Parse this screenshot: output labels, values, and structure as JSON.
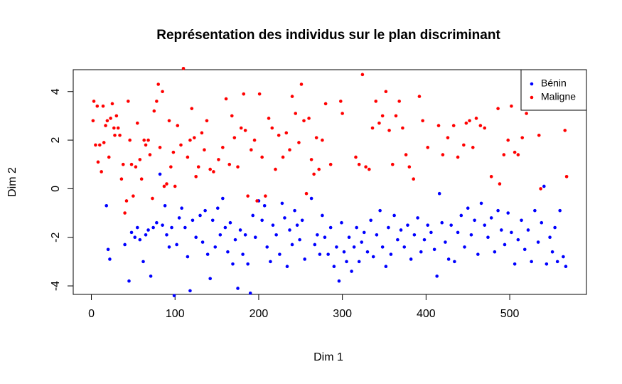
{
  "chart_data": {
    "type": "scatter",
    "title": "Représentation des individus sur le plan discriminant",
    "xlabel": "Dim 1",
    "ylabel": "Dim 2",
    "xlim": [
      -21.7,
      591.7
    ],
    "ylim": [
      -4.35,
      4.9
    ],
    "xticks": [
      0,
      100,
      200,
      300,
      400,
      500
    ],
    "yticks": [
      -4,
      -2,
      0,
      2,
      4
    ],
    "legend": "topright",
    "series": [
      {
        "name": "Bénin",
        "color": "#0000ff",
        "x": [
          18,
          20,
          22,
          40,
          45,
          48,
          52,
          55,
          58,
          62,
          65,
          68,
          71,
          74,
          78,
          82,
          85,
          88,
          90,
          93,
          96,
          99,
          102,
          105,
          108,
          112,
          115,
          118,
          121,
          125,
          130,
          133,
          136,
          139,
          142,
          145,
          148,
          151,
          154,
          157,
          160,
          163,
          166,
          169,
          172,
          175,
          178,
          181,
          184,
          187,
          190,
          193,
          196,
          200,
          204,
          207,
          210,
          214,
          217,
          221,
          225,
          228,
          231,
          234,
          237,
          240,
          243,
          246,
          249,
          252,
          255,
          263,
          267,
          270,
          273,
          276,
          279,
          283,
          286,
          290,
          293,
          296,
          299,
          302,
          305,
          308,
          311,
          314,
          317,
          320,
          323,
          326,
          330,
          334,
          337,
          341,
          345,
          348,
          352,
          355,
          358,
          362,
          366,
          370,
          374,
          378,
          382,
          386,
          390,
          394,
          398,
          402,
          406,
          410,
          413,
          416,
          419,
          423,
          427,
          430,
          434,
          438,
          442,
          446,
          450,
          454,
          458,
          462,
          466,
          470,
          474,
          478,
          482,
          486,
          490,
          494,
          498,
          502,
          506,
          510,
          514,
          518,
          522,
          526,
          530,
          534,
          538,
          541,
          544,
          548,
          551,
          554,
          557,
          560,
          564,
          567
        ],
        "values": [
          -0.7,
          -2.5,
          -2.9,
          -2.3,
          -3.8,
          -1.8,
          -2.0,
          -1.6,
          -2.1,
          -3.0,
          -1.9,
          -1.7,
          -3.6,
          -1.6,
          -1.4,
          0.6,
          -1.5,
          -0.7,
          -1.9,
          -2.4,
          -1.6,
          -4.4,
          -2.3,
          -1.2,
          -0.8,
          -1.6,
          -2.8,
          -4.2,
          -1.3,
          -2.0,
          -1.1,
          -2.2,
          -0.9,
          -2.7,
          -3.7,
          -1.3,
          -2.4,
          -0.8,
          -1.9,
          -0.4,
          -1.6,
          -2.6,
          -1.4,
          -3.1,
          -2.1,
          -4.1,
          -1.7,
          -2.7,
          -1.9,
          -3.1,
          -4.3,
          -1.1,
          -2.0,
          -0.5,
          -1.3,
          -0.7,
          -2.4,
          -3.0,
          -1.5,
          -1.9,
          -2.7,
          -0.6,
          -1.2,
          -3.2,
          -1.7,
          -2.3,
          -0.9,
          -1.5,
          -2.1,
          -1.3,
          -2.9,
          -0.4,
          -2.3,
          -1.9,
          -2.7,
          -1.1,
          -2.0,
          -2.7,
          -1.6,
          -3.2,
          -2.4,
          -3.8,
          -1.4,
          -2.6,
          -3.0,
          -2.0,
          -3.4,
          -2.4,
          -1.6,
          -3.0,
          -2.2,
          -1.8,
          -2.6,
          -1.3,
          -2.8,
          -1.9,
          -0.9,
          -2.4,
          -3.2,
          -1.6,
          -2.7,
          -1.1,
          -2.1,
          -1.7,
          -2.4,
          -1.5,
          -2.9,
          -1.9,
          -1.2,
          -2.6,
          -2.1,
          -1.5,
          -1.8,
          -2.5,
          -3.6,
          -0.2,
          -1.4,
          -2.2,
          -2.9,
          -1.5,
          -3.0,
          -1.8,
          -1.1,
          -2.4,
          -0.8,
          -1.9,
          -1.3,
          -2.7,
          -0.6,
          -1.5,
          -2.0,
          -1.2,
          -2.6,
          -0.9,
          -1.7,
          -2.3,
          -1.0,
          -1.8,
          -3.1,
          -2.1,
          -1.3,
          -2.5,
          -1.7,
          -3.0,
          -0.9,
          -2.2,
          -1.4,
          0.1,
          -3.1,
          -2.0,
          -2.6,
          -1.6,
          -3.0,
          -0.9,
          -2.8,
          -3.2
        ]
      },
      {
        "name": "Maligne",
        "color": "#ff0000",
        "x": [
          2,
          3,
          5,
          7,
          8,
          10,
          12,
          14,
          15,
          17,
          19,
          21,
          23,
          25,
          27,
          28,
          30,
          32,
          34,
          36,
          38,
          40,
          42,
          44,
          46,
          48,
          50,
          53,
          55,
          58,
          60,
          63,
          65,
          68,
          70,
          73,
          75,
          78,
          80,
          82,
          85,
          87,
          90,
          93,
          95,
          98,
          100,
          103,
          107,
          110,
          115,
          118,
          120,
          123,
          125,
          128,
          132,
          135,
          138,
          142,
          146,
          152,
          157,
          161,
          165,
          168,
          171,
          175,
          179,
          182,
          184,
          187,
          191,
          195,
          198,
          201,
          204,
          208,
          212,
          216,
          220,
          224,
          229,
          233,
          237,
          240,
          244,
          248,
          251,
          254,
          257,
          260,
          263,
          266,
          269,
          272,
          276,
          280,
          286,
          298,
          300,
          316,
          320,
          324,
          328,
          332,
          336,
          340,
          344,
          348,
          352,
          356,
          360,
          364,
          368,
          372,
          376,
          380,
          385,
          392,
          396,
          402,
          415,
          420,
          426,
          433,
          438,
          445,
          448,
          452,
          456,
          460,
          465,
          470,
          478,
          486,
          488,
          493,
          498,
          502,
          506,
          510,
          515,
          520,
          535,
          537,
          561,
          563,
          566,
          568
        ],
        "values": [
          2.8,
          3.6,
          1.8,
          3.4,
          1.1,
          1.8,
          0.7,
          3.4,
          1.9,
          2.6,
          2.8,
          1.3,
          2.9,
          3.5,
          2.5,
          2.2,
          3.0,
          2.5,
          2.2,
          0.4,
          1.0,
          -1.0,
          -0.5,
          3.6,
          2.0,
          1.0,
          -0.3,
          0.9,
          2.7,
          1.2,
          0.4,
          2.0,
          1.8,
          2.0,
          1.4,
          -0.4,
          3.2,
          3.6,
          4.3,
          1.7,
          4.0,
          0.1,
          0.2,
          2.8,
          0.9,
          1.5,
          0.1,
          2.6,
          1.8,
          4.95,
          1.3,
          2.0,
          3.3,
          2.1,
          0.5,
          0.9,
          2.3,
          1.6,
          2.8,
          0.8,
          0.7,
          1.2,
          1.7,
          3.7,
          1.0,
          3.0,
          2.1,
          0.9,
          2.5,
          3.9,
          2.4,
          -0.3,
          1.6,
          2.0,
          -0.5,
          3.9,
          1.3,
          -0.3,
          2.9,
          2.5,
          0.8,
          2.2,
          1.3,
          2.3,
          1.6,
          3.8,
          3.1,
          1.9,
          4.3,
          2.8,
          -0.2,
          2.9,
          1.2,
          0.6,
          2.1,
          0.8,
          2.0,
          3.5,
          1.0,
          3.6,
          3.1,
          1.3,
          1.0,
          4.7,
          0.9,
          0.8,
          2.5,
          3.6,
          2.7,
          3.0,
          4.0,
          2.4,
          1.0,
          3.0,
          3.6,
          2.5,
          1.4,
          0.9,
          0.4,
          3.8,
          2.8,
          1.7,
          2.6,
          1.4,
          2.1,
          2.6,
          1.3,
          1.8,
          2.7,
          2.8,
          1.7,
          2.9,
          2.6,
          2.5,
          0.5,
          3.3,
          0.2,
          1.4,
          2.0,
          3.4,
          1.5,
          1.4,
          2.1,
          3.1,
          2.2,
          0.0,
          3.7,
          3.3,
          2.4,
          0.5
        ]
      }
    ]
  }
}
